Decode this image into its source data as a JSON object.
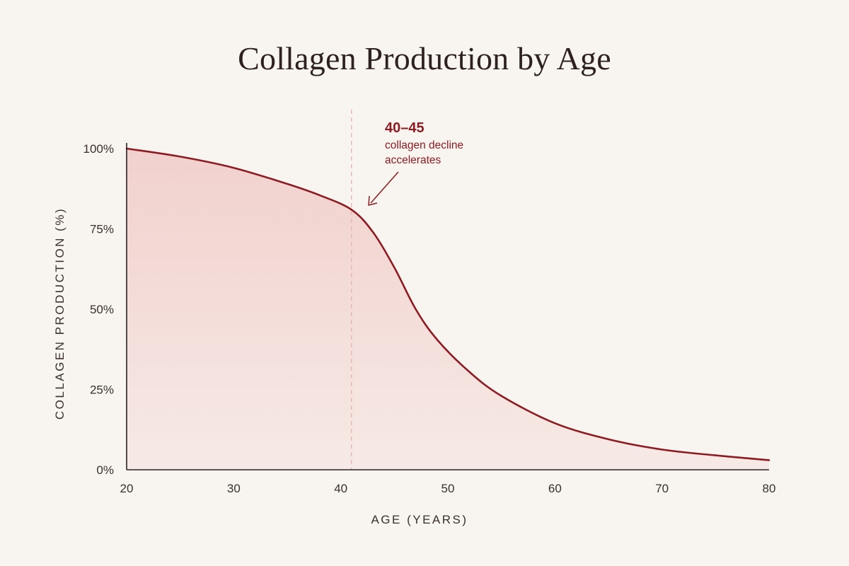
{
  "chart_data": {
    "type": "area",
    "title": "Collagen Production by Age",
    "xlabel": "AGE (YEARS)",
    "ylabel": "COLLAGEN PRODUCTION (%)",
    "xlim": [
      20,
      80
    ],
    "ylim": [
      0,
      100
    ],
    "x_ticks": [
      20,
      30,
      40,
      50,
      60,
      70,
      80
    ],
    "y_ticks": [
      0,
      25,
      50,
      75,
      100
    ],
    "y_tick_suffix": "%",
    "grid": false,
    "series": [
      {
        "x": [
          20,
          25,
          30,
          35,
          38,
          41,
          43,
          45,
          47,
          49,
          52,
          55,
          60,
          65,
          70,
          75,
          80
        ],
        "y": [
          100,
          97.5,
          94,
          89,
          85.5,
          81,
          74,
          63,
          50,
          40.5,
          30.5,
          23,
          14.5,
          9.5,
          6.3,
          4.5,
          3
        ]
      }
    ],
    "annotation": {
      "x": 41,
      "title": "40–45",
      "lines": [
        "collagen decline",
        "accelerates"
      ]
    },
    "colors": {
      "line": "#8c1c22",
      "fill": "#efc5c1",
      "marker": "#e6b3b3",
      "axis": "#2a211f"
    }
  }
}
